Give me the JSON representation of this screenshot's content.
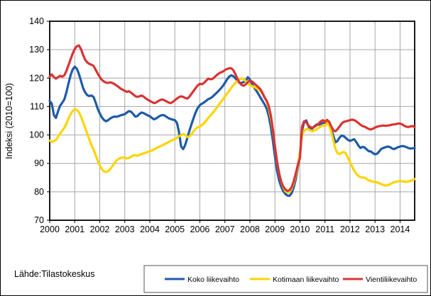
{
  "source": "Lähde:Tilastokeskus",
  "chart_data": {
    "type": "line",
    "title": "",
    "xlabel": "",
    "ylabel": "Indeksi (2010=100)",
    "ylim": [
      70,
      140
    ],
    "y_ticks": [
      70,
      80,
      90,
      100,
      110,
      120,
      130,
      140
    ],
    "x_tick_years": [
      2000,
      2001,
      2002,
      2003,
      2004,
      2005,
      2006,
      2007,
      2008,
      2009,
      2010,
      2011,
      2012,
      2013,
      2014
    ],
    "x_start": "2000-01",
    "x_end": "2014-08",
    "grid": true,
    "legend_position": "bottom",
    "colors": {
      "grid": "#a6a6a6",
      "axis": "#000000"
    },
    "series": [
      {
        "name": "Koko liikevaihto",
        "color": "#1e5aa8",
        "values": [
          112.0,
          111.0,
          107.0,
          106.0,
          108.3,
          110.3,
          111.3,
          112.5,
          115.0,
          118.0,
          121.0,
          123.0,
          124.0,
          123.3,
          121.5,
          119.0,
          116.5,
          115.0,
          114.0,
          113.7,
          113.9,
          113.4,
          111.5,
          109.2,
          107.6,
          106.2,
          105.3,
          104.8,
          105.2,
          105.8,
          106.2,
          106.5,
          106.4,
          106.6,
          106.9,
          107.1,
          107.3,
          107.9,
          108.4,
          108.2,
          107.4,
          106.5,
          106.6,
          107.4,
          107.9,
          107.7,
          107.3,
          106.9,
          106.6,
          106.0,
          105.5,
          105.8,
          106.3,
          106.8,
          107.0,
          106.9,
          106.4,
          105.9,
          105.6,
          105.4,
          105.2,
          104.3,
          101.0,
          96.0,
          95.0,
          96.5,
          99.0,
          101.5,
          103.8,
          106.0,
          108.0,
          109.5,
          110.5,
          111.0,
          111.4,
          112.0,
          112.6,
          112.9,
          113.4,
          114.1,
          114.8,
          115.5,
          116.3,
          117.2,
          118.3,
          119.5,
          120.5,
          121.0,
          120.7,
          120.0,
          119.0,
          118.4,
          118.3,
          118.6,
          119.0,
          120.3,
          119.5,
          118.0,
          116.7,
          115.6,
          114.5,
          113.2,
          112.0,
          110.8,
          109.3,
          106.8,
          103.0,
          98.0,
          92.5,
          87.5,
          84.0,
          81.8,
          80.2,
          79.2,
          78.7,
          78.6,
          79.5,
          81.5,
          84.5,
          88.5,
          93.5,
          101.5,
          104.6,
          105.1,
          103.2,
          101.8,
          102.3,
          103.1,
          103.7,
          103.6,
          103.9,
          104.2,
          104.3,
          104.9,
          104.1,
          102.2,
          99.6,
          97.4,
          97.9,
          99.1,
          99.8,
          99.6,
          98.9,
          98.3,
          97.9,
          98.2,
          98.5,
          97.5,
          96.3,
          95.4,
          95.8,
          95.6,
          94.9,
          94.3,
          94.2,
          93.6,
          93.2,
          93.4,
          94.2,
          95.1,
          95.4,
          95.7,
          95.9,
          95.8,
          95.3,
          95.0,
          95.3,
          95.7,
          95.9,
          96.1,
          96.0,
          95.7,
          95.4,
          95.2,
          95.3,
          95.4
        ]
      },
      {
        "name": "Kotimaan liikevaihto",
        "color": "#ffd400",
        "values": [
          98.0,
          97.6,
          97.8,
          98.3,
          99.3,
          100.5,
          101.5,
          102.5,
          104.0,
          105.8,
          107.3,
          108.4,
          109.0,
          108.8,
          108.0,
          106.5,
          104.5,
          102.5,
          100.5,
          98.5,
          96.5,
          94.8,
          93.0,
          91.0,
          89.3,
          88.0,
          87.2,
          87.0,
          87.3,
          88.0,
          89.0,
          90.0,
          91.0,
          91.6,
          91.9,
          92.1,
          92.0,
          91.7,
          91.9,
          92.3,
          92.8,
          92.9,
          92.7,
          93.0,
          93.3,
          93.5,
          93.8,
          94.0,
          94.3,
          94.5,
          94.9,
          95.3,
          95.7,
          96.0,
          96.3,
          96.7,
          97.1,
          97.5,
          97.9,
          98.2,
          98.5,
          99.0,
          99.5,
          100.0,
          100.3,
          100.0,
          99.3,
          99.5,
          100.3,
          101.3,
          102.2,
          102.7,
          103.0,
          103.5,
          104.1,
          105.0,
          106.0,
          106.8,
          107.6,
          108.5,
          109.5,
          110.5,
          111.5,
          112.5,
          113.5,
          114.5,
          115.5,
          116.5,
          117.5,
          118.3,
          119.0,
          119.6,
          119.9,
          119.6,
          118.9,
          118.1,
          117.5,
          117.2,
          116.9,
          116.5,
          116.0,
          115.4,
          114.5,
          113.5,
          112.0,
          109.5,
          106.0,
          101.5,
          96.0,
          90.5,
          86.5,
          83.5,
          81.5,
          80.2,
          79.7,
          79.9,
          81.0,
          83.0,
          85.8,
          89.0,
          94.0,
          99.8,
          101.4,
          102.1,
          102.0,
          101.6,
          101.3,
          101.6,
          102.0,
          102.5,
          103.0,
          103.3,
          103.1,
          104.4,
          103.4,
          101.0,
          98.0,
          95.2,
          93.6,
          93.3,
          93.8,
          94.0,
          93.5,
          92.0,
          90.4,
          88.9,
          87.5,
          86.4,
          85.6,
          85.2,
          85.0,
          85.0,
          84.5,
          84.0,
          83.8,
          83.6,
          83.4,
          83.3,
          83.0,
          82.7,
          82.4,
          82.2,
          82.3,
          82.6,
          83.0,
          83.3,
          83.5,
          83.7,
          83.8,
          83.7,
          83.6,
          83.5,
          83.6,
          83.8,
          84.2,
          84.5
        ]
      },
      {
        "name": "Vientiliikevaihto",
        "color": "#d93333",
        "values": [
          120.5,
          121.3,
          120.4,
          119.8,
          120.3,
          120.8,
          120.5,
          121.0,
          122.5,
          124.5,
          126.6,
          128.6,
          130.2,
          131.2,
          131.5,
          130.2,
          128.2,
          126.5,
          125.5,
          125.0,
          124.7,
          124.3,
          123.0,
          121.6,
          120.4,
          119.4,
          118.8,
          118.4,
          118.3,
          118.5,
          118.3,
          117.9,
          117.4,
          116.9,
          116.3,
          115.9,
          115.5,
          115.2,
          115.4,
          114.9,
          114.3,
          113.7,
          113.4,
          113.6,
          113.9,
          113.5,
          112.9,
          112.4,
          112.0,
          111.6,
          111.2,
          111.4,
          111.9,
          112.3,
          112.5,
          112.2,
          111.8,
          111.4,
          111.2,
          111.6,
          112.2,
          112.8,
          113.3,
          113.6,
          113.4,
          113.0,
          112.8,
          113.5,
          114.5,
          115.5,
          116.5,
          117.4,
          118.0,
          117.8,
          118.3,
          119.1,
          119.8,
          119.6,
          119.7,
          120.3,
          121.0,
          121.6,
          122.0,
          122.3,
          122.8,
          123.2,
          123.4,
          123.5,
          122.8,
          121.5,
          119.8,
          118.4,
          117.6,
          117.3,
          117.8,
          118.6,
          119.2,
          118.8,
          118.2,
          117.5,
          116.8,
          116.1,
          114.8,
          113.2,
          112.0,
          110.3,
          107.0,
          102.0,
          96.0,
          90.8,
          86.5,
          83.6,
          81.8,
          80.8,
          80.3,
          80.6,
          81.6,
          83.6,
          86.5,
          89.5,
          92.0,
          103.0,
          104.8,
          104.4,
          103.4,
          102.8,
          102.5,
          102.9,
          103.4,
          104.0,
          104.8,
          105.2,
          104.5,
          105.3,
          104.6,
          103.0,
          101.6,
          101.3,
          102.0,
          103.0,
          104.0,
          104.6,
          104.8,
          105.0,
          105.2,
          105.4,
          105.2,
          104.8,
          104.2,
          103.6,
          103.1,
          102.9,
          102.5,
          102.1,
          101.9,
          102.2,
          102.6,
          102.9,
          103.1,
          103.2,
          103.3,
          103.2,
          103.3,
          103.4,
          103.6,
          103.7,
          103.8,
          104.0,
          104.0,
          103.7,
          103.2,
          102.9,
          102.8,
          103.0,
          103.1,
          102.8
        ]
      }
    ]
  }
}
